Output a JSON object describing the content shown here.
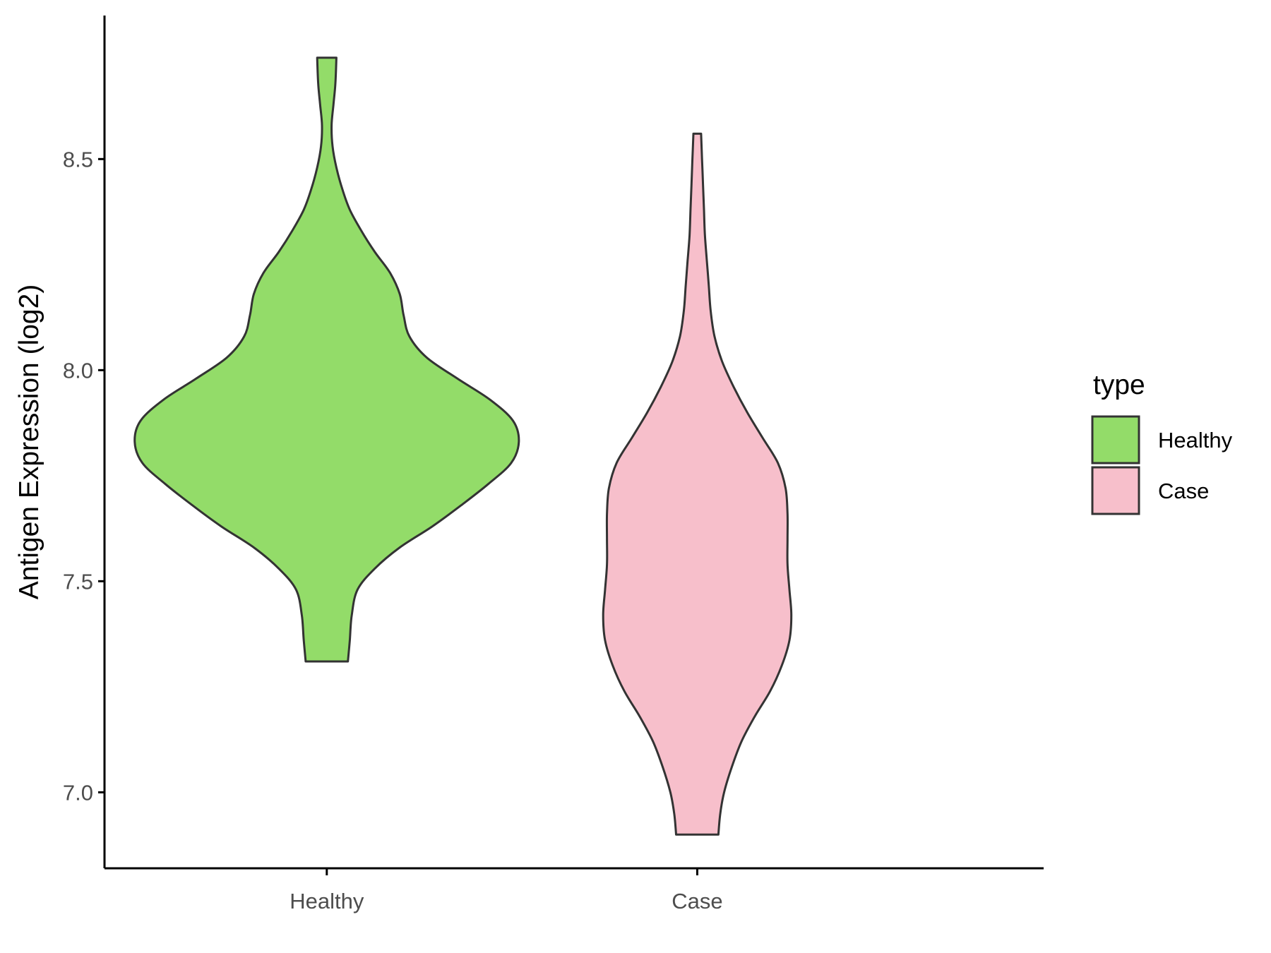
{
  "chart_data": {
    "type": "violin",
    "xlabel": "",
    "ylabel": "Antigen Expression (log2)",
    "categories": [
      "Healthy",
      "Case"
    ],
    "ylim": [
      6.82,
      8.84
    ],
    "yticks": [
      "7.0",
      "7.5",
      "8.0",
      "8.5"
    ],
    "grid": false,
    "legend": {
      "title": "type",
      "position": "right",
      "entries": [
        {
          "label": "Healthy",
          "color": "#93DC69"
        },
        {
          "label": "Case",
          "color": "#F7BFCB"
        }
      ]
    },
    "series": [
      {
        "name": "Healthy",
        "color": "#93DC69",
        "min": 7.31,
        "max": 8.74,
        "density": [
          [
            7.31,
            0.11
          ],
          [
            7.36,
            0.12
          ],
          [
            7.42,
            0.13
          ],
          [
            7.48,
            0.16
          ],
          [
            7.53,
            0.25
          ],
          [
            7.58,
            0.38
          ],
          [
            7.63,
            0.55
          ],
          [
            7.68,
            0.7
          ],
          [
            7.73,
            0.84
          ],
          [
            7.78,
            0.96
          ],
          [
            7.83,
            1.0
          ],
          [
            7.88,
            0.97
          ],
          [
            7.93,
            0.85
          ],
          [
            7.98,
            0.68
          ],
          [
            8.03,
            0.52
          ],
          [
            8.08,
            0.43
          ],
          [
            8.13,
            0.4
          ],
          [
            8.18,
            0.38
          ],
          [
            8.23,
            0.33
          ],
          [
            8.28,
            0.25
          ],
          [
            8.33,
            0.18
          ],
          [
            8.38,
            0.12
          ],
          [
            8.43,
            0.08
          ],
          [
            8.48,
            0.05
          ],
          [
            8.53,
            0.03
          ],
          [
            8.58,
            0.025
          ],
          [
            8.63,
            0.035
          ],
          [
            8.68,
            0.045
          ],
          [
            8.74,
            0.05
          ]
        ]
      },
      {
        "name": "Case",
        "color": "#F7BFCB",
        "min": 6.9,
        "max": 8.56,
        "density": [
          [
            6.9,
            0.11
          ],
          [
            6.95,
            0.12
          ],
          [
            7.0,
            0.14
          ],
          [
            7.06,
            0.18
          ],
          [
            7.12,
            0.23
          ],
          [
            7.18,
            0.3
          ],
          [
            7.24,
            0.38
          ],
          [
            7.3,
            0.44
          ],
          [
            7.36,
            0.48
          ],
          [
            7.42,
            0.49
          ],
          [
            7.48,
            0.48
          ],
          [
            7.54,
            0.47
          ],
          [
            7.6,
            0.47
          ],
          [
            7.66,
            0.47
          ],
          [
            7.72,
            0.46
          ],
          [
            7.78,
            0.42
          ],
          [
            7.84,
            0.34
          ],
          [
            7.9,
            0.26
          ],
          [
            7.96,
            0.19
          ],
          [
            8.02,
            0.13
          ],
          [
            8.08,
            0.09
          ],
          [
            8.14,
            0.07
          ],
          [
            8.2,
            0.06
          ],
          [
            8.26,
            0.05
          ],
          [
            8.32,
            0.04
          ],
          [
            8.38,
            0.035
          ],
          [
            8.44,
            0.03
          ],
          [
            8.5,
            0.025
          ],
          [
            8.56,
            0.02
          ]
        ]
      }
    ]
  }
}
